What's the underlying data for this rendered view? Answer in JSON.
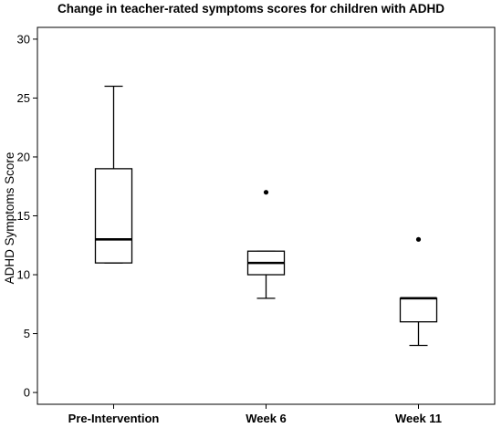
{
  "chart_data": {
    "type": "boxplot",
    "title": "Change in teacher-rated symptoms scores for children with ADHD",
    "xlabel": "",
    "ylabel": "ADHD Symptoms Score",
    "ylim": [
      -1,
      31
    ],
    "yticks": [
      0,
      5,
      10,
      15,
      20,
      25,
      30
    ],
    "grid": false,
    "categories": [
      "Pre-Intervention",
      "Week 6",
      "Week 11"
    ],
    "boxes": [
      {
        "category": "Pre-Intervention",
        "whisker_low": 11,
        "q1": 11,
        "median": 13,
        "q3": 19,
        "whisker_high": 26,
        "outliers": []
      },
      {
        "category": "Week 6",
        "whisker_low": 8,
        "q1": 10,
        "median": 11,
        "q3": 12,
        "whisker_high": 12,
        "outliers": [
          17
        ]
      },
      {
        "category": "Week 11",
        "whisker_low": 4,
        "q1": 6,
        "median": 8,
        "q3": 8,
        "whisker_high": 8,
        "outliers": [
          13
        ]
      }
    ]
  }
}
